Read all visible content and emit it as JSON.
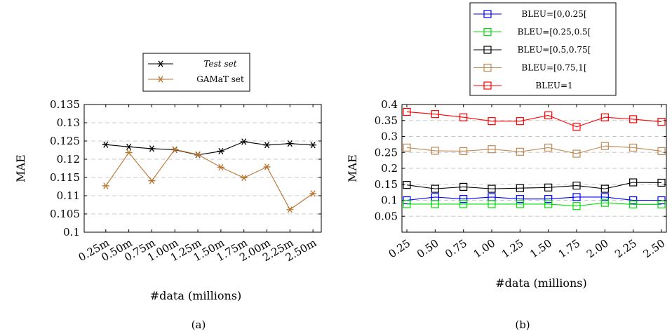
{
  "figures": [
    {
      "caption": "(a)",
      "legend_position": "top",
      "chart_data": {
        "type": "line",
        "x": [
          "0.25m",
          "0.50m",
          "0.75m",
          "1.00m",
          "1.25m",
          "1.50m",
          "1.75m",
          "2.00m",
          "2.25m",
          "2.50m"
        ],
        "xlabel": "#data (millions)",
        "ylabel": "MAE",
        "ylim": [
          0.1,
          0.135
        ],
        "yticks": [
          "0.1",
          "0.105",
          "0.11",
          "0.115",
          "0.12",
          "0.125",
          "0.13",
          "0.135"
        ],
        "grid": "horizontal dashed",
        "series": [
          {
            "name": "Test set",
            "color": "#000000",
            "marker": "star",
            "italic": true,
            "values": [
              0.124,
              0.1234,
              0.1229,
              0.1226,
              0.1212,
              0.1222,
              0.1248,
              0.1239,
              0.1243,
              0.1239
            ]
          },
          {
            "name": "GAMaT set",
            "color": "#b8732e",
            "marker": "star",
            "italic": false,
            "values": [
              0.1127,
              0.1218,
              0.1141,
              0.1227,
              0.1213,
              0.1178,
              0.1149,
              0.1179,
              0.1062,
              0.1106
            ]
          }
        ]
      }
    },
    {
      "caption": "(b)",
      "legend_position": "top",
      "chart_data": {
        "type": "line",
        "x": [
          "0.25",
          "0.50",
          "0.75",
          "1.00",
          "1.25",
          "1.50",
          "1.75",
          "2.00",
          "2.25",
          "2.50"
        ],
        "xlabel": "#data (millions)",
        "ylabel": "MAE",
        "ylim": [
          0.0,
          0.4
        ],
        "yticks": [
          "0.05",
          "0.1",
          "0.15",
          "0.2",
          "0.25",
          "0.3",
          "0.35",
          "0.4"
        ],
        "grid": "horizontal dashed",
        "series": [
          {
            "name": "BLEU=[0,0.25[",
            "color": "#0000ff",
            "marker": "square",
            "values": [
              0.1,
              0.11,
              0.104,
              0.11,
              0.104,
              0.104,
              0.11,
              0.11,
              0.1,
              0.1
            ]
          },
          {
            "name": "BLEU=[0.25,0.5[",
            "color": "#00e000",
            "marker": "square",
            "values": [
              0.088,
              0.088,
              0.088,
              0.088,
              0.088,
              0.088,
              0.082,
              0.092,
              0.087,
              0.087
            ]
          },
          {
            "name": "BLEU=[0.5,0.75[",
            "color": "#000000",
            "marker": "square",
            "values": [
              0.148,
              0.136,
              0.142,
              0.136,
              0.138,
              0.14,
              0.146,
              0.136,
              0.156,
              0.155
            ]
          },
          {
            "name": "BLEU=[0.75,1[",
            "color": "#c08a55",
            "marker": "square",
            "values": [
              0.265,
              0.255,
              0.254,
              0.26,
              0.252,
              0.265,
              0.246,
              0.27,
              0.265,
              0.254
            ]
          },
          {
            "name": "BLEU=1",
            "color": "#ff0000",
            "marker": "square",
            "values": [
              0.377,
              0.37,
              0.36,
              0.348,
              0.348,
              0.366,
              0.33,
              0.36,
              0.354,
              0.346
            ]
          }
        ]
      }
    }
  ]
}
